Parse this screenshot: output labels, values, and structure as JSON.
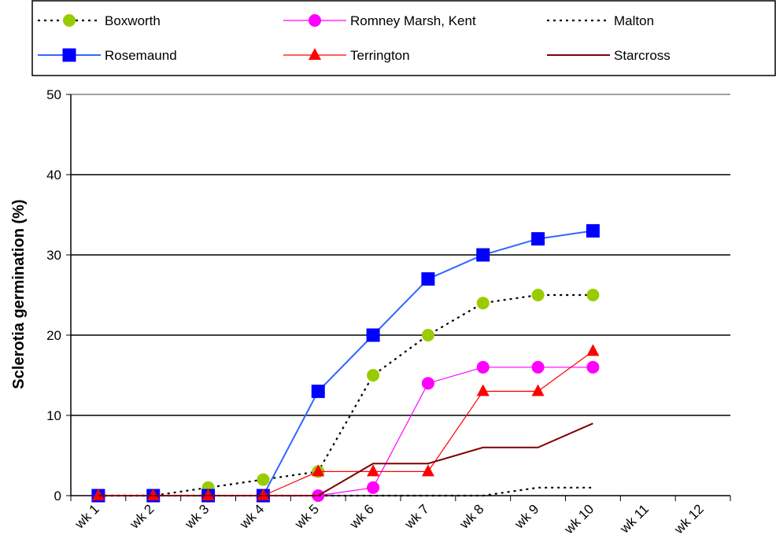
{
  "chart_data": {
    "type": "line",
    "title": "",
    "xlabel": "",
    "ylabel": "Sclerotia germination (%)",
    "ylim": [
      0,
      50
    ],
    "yticks": [
      0,
      10,
      20,
      30,
      40,
      50
    ],
    "grid": "horizontal",
    "legend_position": "top",
    "categories": [
      "wk 1",
      "wk 2",
      "wk 3",
      "wk 4",
      "wk 5",
      "wk 6",
      "wk 7",
      "wk 8",
      "wk 9",
      "wk 10",
      "wk 11",
      "wk 12"
    ],
    "series": [
      {
        "name": "Boxworth",
        "values": [
          0,
          0,
          1,
          2,
          3,
          15,
          20,
          24,
          25,
          25,
          null,
          null
        ],
        "color": "#000000",
        "dash": "dotted",
        "marker": "circle",
        "marker_color": "#99CC00"
      },
      {
        "name": "Romney Marsh, Kent",
        "values": [
          null,
          null,
          null,
          null,
          0,
          1,
          14,
          16,
          16,
          16,
          null,
          null
        ],
        "color": "#FF00FF",
        "dash": "solid",
        "marker": "circle",
        "marker_color": "#FF00FF"
      },
      {
        "name": "Malton",
        "values": [
          0,
          0,
          0,
          0,
          0,
          0,
          0,
          0,
          1,
          1,
          null,
          null
        ],
        "color": "#000000",
        "dash": "dotted",
        "marker": "none",
        "marker_color": ""
      },
      {
        "name": "Rosemaund",
        "values": [
          0,
          0,
          0,
          0,
          13,
          20,
          27,
          30,
          32,
          33,
          null,
          null
        ],
        "color": "#3366FF",
        "dash": "solid",
        "marker": "square",
        "marker_color": "#0000FF"
      },
      {
        "name": "Terrington",
        "values": [
          0,
          0,
          0,
          0,
          3,
          3,
          3,
          13,
          13,
          18,
          null,
          null
        ],
        "color": "#FF0000",
        "dash": "solid",
        "marker": "triangle",
        "marker_color": "#FF0000"
      },
      {
        "name": "Starcross",
        "values": [
          0,
          0,
          0,
          0,
          0,
          4,
          4,
          6,
          6,
          9,
          null,
          null
        ],
        "color": "#800000",
        "dash": "solid",
        "marker": "none",
        "marker_color": ""
      }
    ]
  }
}
